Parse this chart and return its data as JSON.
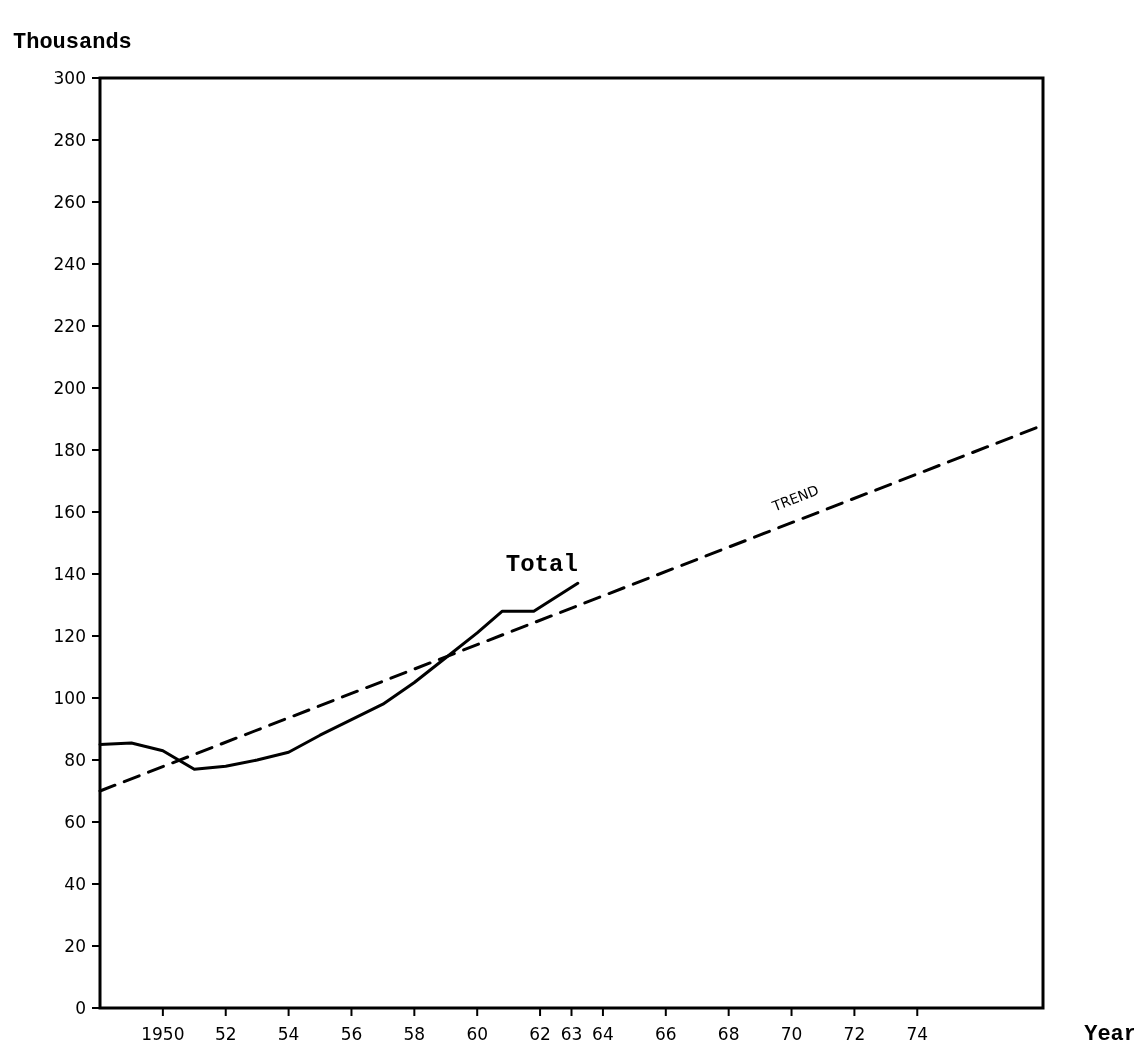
{
  "chart_data": {
    "type": "line",
    "xlabel": "Year",
    "ylabel": "Thousands",
    "xlim": [
      1948,
      1978
    ],
    "ylim": [
      0,
      300
    ],
    "xticks": [
      1950,
      {
        "value": 1952,
        "label": "52"
      },
      {
        "value": 1954,
        "label": "54"
      },
      {
        "value": 1956,
        "label": "56"
      },
      {
        "value": 1958,
        "label": "58"
      },
      {
        "value": 1960,
        "label": "60"
      },
      {
        "value": 1962,
        "label": "62"
      },
      {
        "value": 1963,
        "label": "63"
      },
      {
        "value": 1964,
        "label": "64"
      },
      {
        "value": 1966,
        "label": "66"
      },
      {
        "value": 1968,
        "label": "68"
      },
      {
        "value": 1970,
        "label": "70"
      },
      {
        "value": 1972,
        "label": "72"
      },
      {
        "value": 1974,
        "label": "74"
      }
    ],
    "yticks": [
      0,
      20,
      40,
      60,
      80,
      100,
      120,
      140,
      160,
      180,
      200,
      220,
      240,
      260,
      280,
      300
    ],
    "marker": "none",
    "series": [
      {
        "name": "Total",
        "color": "#000000",
        "line_style": "solid",
        "x": [
          1948,
          1949,
          1950,
          1951,
          1952,
          1953,
          1954,
          1955,
          1956,
          1957,
          1958,
          1959,
          1960,
          1960.8,
          1961.8,
          1963.2
        ],
        "values": [
          85,
          85.5,
          83,
          77,
          78,
          80,
          82.5,
          88,
          93,
          98,
          105,
          113,
          121,
          128,
          128,
          137
        ]
      },
      {
        "name": "TREND",
        "color": "#000000",
        "line_style": "dashed",
        "x": [
          1948,
          1978
        ],
        "values": [
          70,
          188
        ]
      }
    ]
  }
}
